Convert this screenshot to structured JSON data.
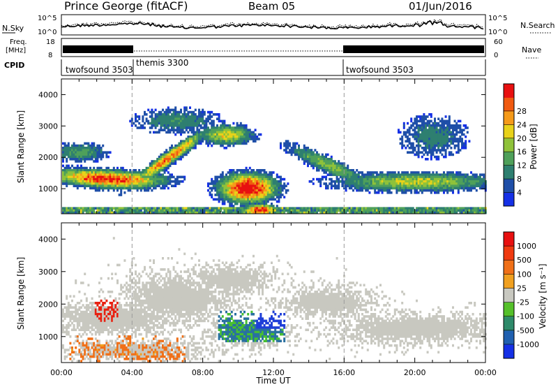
{
  "header": {
    "station": "Prince George (fitACF)",
    "beam": "Beam 05",
    "date": "01/Jun/2016"
  },
  "summary": {
    "nsky_label": "N.Sky",
    "nsky_ticks": [
      "10^5",
      "10^0"
    ],
    "nsearch_label": "N.Search",
    "nsearch_ticks": [
      "10^5",
      "10^0"
    ],
    "freq_label_1": "Freq.",
    "freq_label_2": "[MHz]",
    "freq_ticks": [
      "18",
      "8"
    ],
    "nave_label": "Nave",
    "nave_ticks": [
      "60",
      "0"
    ],
    "cpid_label": "CPID",
    "cpid_segments": [
      {
        "name": "twofsound 3503",
        "start_h": 0,
        "end_h": 4
      },
      {
        "name": "themis 3300",
        "start_h": 4,
        "end_h": 16
      },
      {
        "name": "twofsound 3503",
        "start_h": 16,
        "end_h": 24
      }
    ]
  },
  "chart_data": [
    {
      "type": "heatmap",
      "title": "",
      "xlabel": "",
      "ylabel": "Slant Range [km]",
      "xlim_hours": [
        0,
        24
      ],
      "ylim_km": [
        200,
        4500
      ],
      "y_ticks": [
        "1000",
        "2000",
        "3000",
        "4000"
      ],
      "colorbar_label": "Power [dB]",
      "colorbar_ticks": [
        "4",
        "8",
        "12",
        "16",
        "20",
        "24",
        "28"
      ],
      "colorbar_colors": [
        "#1530e6",
        "#1f4fa8",
        "#2e7f70",
        "#4fa05a",
        "#8fc23a",
        "#e8d21a",
        "#f59a1a",
        "#f05a10",
        "#e81010"
      ]
    },
    {
      "type": "heatmap",
      "title": "",
      "xlabel": "Time UT",
      "ylabel": "Slant Range [km]",
      "xlim_hours": [
        0,
        24
      ],
      "ylim_km": [
        200,
        4500
      ],
      "y_ticks": [
        "1000",
        "2000",
        "3000",
        "4000"
      ],
      "x_ticks": [
        "00:00",
        "04:00",
        "08:00",
        "12:00",
        "16:00",
        "20:00",
        "00:00"
      ],
      "colorbar_label": "Velocity [m s⁻¹]",
      "colorbar_ticks": [
        "1000",
        "500",
        "100",
        "25",
        "-25",
        "-100",
        "-500",
        "-1000"
      ],
      "colorbar_colors": [
        "#1530e6",
        "#2060b0",
        "#2e8a6a",
        "#55c02a",
        "#c8c8c0",
        "#f0a020",
        "#f07018",
        "#f03a10",
        "#e81010"
      ]
    }
  ]
}
